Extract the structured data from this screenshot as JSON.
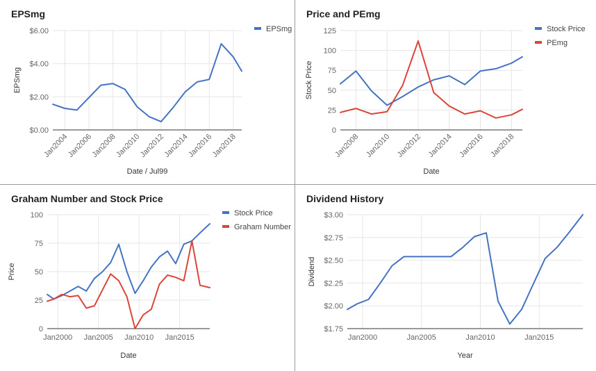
{
  "chart_data": [
    {
      "type": "line",
      "title": "EPSmg",
      "xlabel": "Date / Jul99",
      "ylabel": "EPSmg",
      "x": [
        2003,
        2004,
        2005,
        2006,
        2007,
        2008,
        2009,
        2010,
        2011,
        2012,
        2013,
        2014,
        2015,
        2016,
        2017,
        2018,
        2018.7
      ],
      "series": [
        {
          "name": "EPSmg",
          "color": "#4472c4",
          "values": [
            1.55,
            1.3,
            1.2,
            1.95,
            2.7,
            2.8,
            2.45,
            1.4,
            0.8,
            0.5,
            1.35,
            2.3,
            2.9,
            3.05,
            5.2,
            4.4,
            3.55
          ]
        }
      ],
      "ylim": [
        0,
        6
      ],
      "yticks": [
        0,
        2,
        4,
        6
      ],
      "ytick_labels": [
        "$0.00",
        "$2.00",
        "$4.00",
        "$6.00"
      ],
      "xticks": [
        2004,
        2006,
        2008,
        2010,
        2012,
        2014,
        2016,
        2018
      ],
      "xtick_labels": [
        "Jan2004",
        "Jan2006",
        "Jan2008",
        "Jan2010",
        "Jan2012",
        "Jan2014",
        "Jan2016",
        "Jan2018"
      ],
      "xlim": [
        2003,
        2018.7
      ],
      "grid": true,
      "legend": "right"
    },
    {
      "type": "line",
      "title": "Price and PEmg",
      "xlabel": "Date",
      "ylabel": "Stock Price",
      "x": [
        2007,
        2008,
        2009,
        2010,
        2011,
        2012,
        2013,
        2014,
        2015,
        2016,
        2017,
        2018,
        2018.7
      ],
      "series": [
        {
          "name": "Stock Price",
          "color": "#4472c4",
          "values": [
            58,
            74,
            49,
            31,
            42,
            54,
            63,
            68,
            57,
            74,
            77,
            84,
            92
          ]
        },
        {
          "name": "PEmg",
          "color": "#db4437",
          "values": [
            22,
            27,
            20,
            23,
            56,
            112,
            47,
            30,
            20,
            24,
            15,
            19,
            26
          ]
        }
      ],
      "ylim": [
        0,
        125
      ],
      "yticks": [
        0,
        25,
        50,
        75,
        100,
        125
      ],
      "ytick_labels": [
        "0",
        "25",
        "50",
        "75",
        "100",
        "125"
      ],
      "xticks": [
        2008,
        2010,
        2012,
        2014,
        2016,
        2018
      ],
      "xtick_labels": [
        "Jan2008",
        "Jan2010",
        "Jan2012",
        "Jan2014",
        "Jan2016",
        "Jan2018"
      ],
      "xlim": [
        2007,
        2018.7
      ],
      "grid": true,
      "legend": "right"
    },
    {
      "type": "line",
      "title": "Graham Number and Stock Price",
      "xlabel": "Date",
      "ylabel": "Price",
      "x": [
        1998.7,
        1999.5,
        2000.5,
        2001.5,
        2002.5,
        2003.5,
        2004.5,
        2005.5,
        2006.5,
        2007.5,
        2008.5,
        2009.5,
        2010.5,
        2011.5,
        2012.5,
        2013.5,
        2014.5,
        2015.5,
        2016.5,
        2017.5,
        2018.7
      ],
      "series": [
        {
          "name": "Stock Price",
          "color": "#4472c4",
          "values": [
            30,
            26,
            29,
            33,
            37,
            33,
            44,
            50,
            58,
            74,
            50,
            31,
            42,
            54,
            63,
            68,
            57,
            74,
            77,
            84,
            92
          ]
        },
        {
          "name": "Graham Number",
          "color": "#db4437",
          "values": [
            24,
            26,
            30,
            28,
            29,
            18,
            20,
            34,
            48,
            42,
            28,
            0,
            12,
            17,
            39,
            47,
            45,
            42,
            77,
            38,
            36
          ]
        }
      ],
      "ylim": [
        0,
        100
      ],
      "yticks": [
        0,
        25,
        50,
        75,
        100
      ],
      "ytick_labels": [
        "0",
        "25",
        "50",
        "75",
        "100"
      ],
      "xticks": [
        2000,
        2005,
        2010,
        2015
      ],
      "xtick_labels": [
        "Jan2000",
        "Jan2005",
        "Jan2010",
        "Jan2015"
      ],
      "xlim": [
        1998.7,
        2018.7
      ],
      "grid": true,
      "legend": "right"
    },
    {
      "type": "line",
      "title": "Dividend History",
      "xlabel": "Year",
      "ylabel": "Dividend",
      "x": [
        1998.7,
        1999.5,
        2000.5,
        2001.5,
        2002.5,
        2003.5,
        2004.5,
        2005.5,
        2006.5,
        2007.5,
        2008.5,
        2009.5,
        2010.5,
        2011.5,
        2012.5,
        2013.5,
        2014.5,
        2015.5,
        2016.5,
        2017.5,
        2018.7
      ],
      "series": [
        {
          "color": "#4472c4",
          "values": [
            1.96,
            2.02,
            2.07,
            2.25,
            2.44,
            2.54,
            2.54,
            2.54,
            2.54,
            2.54,
            2.64,
            2.76,
            2.8,
            2.05,
            1.8,
            1.96,
            2.24,
            2.52,
            2.64,
            2.8,
            3.0
          ]
        }
      ],
      "ylim": [
        1.75,
        3.0
      ],
      "yticks": [
        1.75,
        2.0,
        2.25,
        2.5,
        2.75,
        3.0
      ],
      "ytick_labels": [
        "$1.75",
        "$2.00",
        "$2.25",
        "$2.50",
        "$2.75",
        "$3.00"
      ],
      "xticks": [
        2000,
        2005,
        2010,
        2015
      ],
      "xtick_labels": [
        "Jan2000",
        "Jan2005",
        "Jan2010",
        "Jan2015"
      ],
      "xlim": [
        1998.7,
        2018.7
      ],
      "grid": true,
      "legend": "none"
    }
  ]
}
